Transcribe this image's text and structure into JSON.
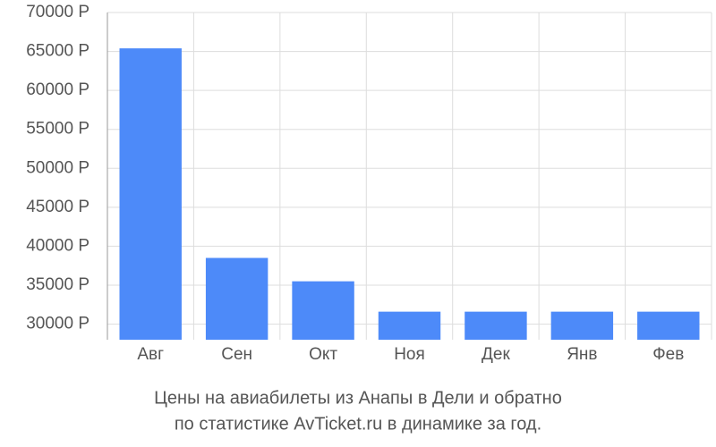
{
  "chart_data": {
    "type": "bar",
    "title": "Цены на авиабилеты из Анапы в Дели и обратно",
    "subtitle": "по статистике AvTicket.ru в динамике за год.",
    "categories": [
      "Авг",
      "Сен",
      "Окт",
      "Ноя",
      "Дек",
      "Янв",
      "Фев"
    ],
    "values": [
      65400,
      38500,
      35500,
      31600,
      31600,
      31600,
      31600
    ],
    "color": "#4d8af9",
    "ylim": [
      28000,
      70000
    ],
    "yticks": [
      {
        "value": 30000,
        "label": "30000 Р"
      },
      {
        "value": 35000,
        "label": "35000 Р"
      },
      {
        "value": 40000,
        "label": "40000 Р"
      },
      {
        "value": 45000,
        "label": "45000 Р"
      },
      {
        "value": 50000,
        "label": "50000 Р"
      },
      {
        "value": 55000,
        "label": "55000 Р"
      },
      {
        "value": 60000,
        "label": "60000 Р"
      },
      {
        "value": 65000,
        "label": "65000 Р"
      },
      {
        "value": 70000,
        "label": "70000 Р"
      }
    ],
    "grid": true
  }
}
